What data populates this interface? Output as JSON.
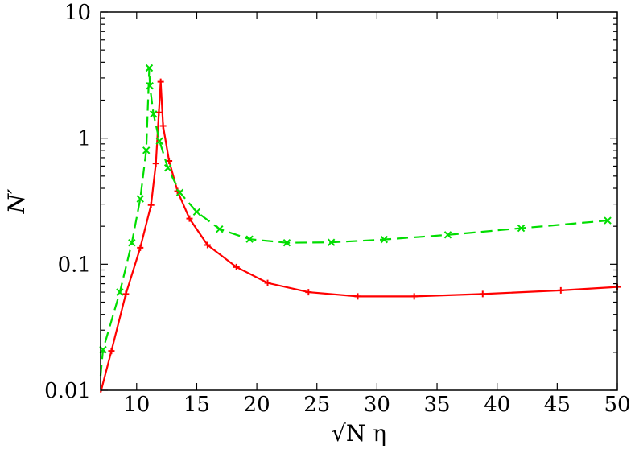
{
  "chart_data": {
    "type": "line",
    "xlabel": "√N η",
    "ylabel": "N′",
    "xlim": [
      7,
      50
    ],
    "ylim": [
      0.01,
      10
    ],
    "yscale": "log",
    "grid": false,
    "x_ticks": [
      10,
      15,
      20,
      25,
      30,
      35,
      40,
      45,
      50
    ],
    "x_tick_labels": [
      "10",
      "15",
      "20",
      "25",
      "30",
      "35",
      "40",
      "45",
      "50"
    ],
    "y_ticks": [
      0.01,
      0.1,
      1,
      10
    ],
    "y_tick_labels": [
      "0.01",
      "0.1",
      "1",
      "10"
    ],
    "series": [
      {
        "color": "#ff0000",
        "line_style": "solid",
        "marker": "+",
        "points": [
          [
            7,
            0.0096
          ],
          [
            7.9,
            0.0205
          ],
          [
            9.1,
            0.058
          ],
          [
            10.3,
            0.135
          ],
          [
            11.2,
            0.295
          ],
          [
            11.6,
            0.63
          ],
          [
            11.85,
            1.6
          ],
          [
            12.0,
            2.8
          ],
          [
            12.2,
            1.25
          ],
          [
            12.7,
            0.66
          ],
          [
            13.4,
            0.38
          ],
          [
            14.4,
            0.23
          ],
          [
            15.9,
            0.142
          ],
          [
            18.3,
            0.095
          ],
          [
            20.9,
            0.071
          ],
          [
            24.3,
            0.06
          ],
          [
            28.4,
            0.0555
          ],
          [
            33.1,
            0.0555
          ],
          [
            38.8,
            0.058
          ],
          [
            45.3,
            0.062
          ],
          [
            50,
            0.066
          ]
        ]
      },
      {
        "color": "#00dd00",
        "line_style": "dashed",
        "marker": "x",
        "points": [
          [
            7,
            0.013
          ],
          [
            7.2,
            0.021
          ],
          [
            8.6,
            0.06
          ],
          [
            9.6,
            0.148
          ],
          [
            10.3,
            0.33
          ],
          [
            10.8,
            0.8
          ],
          [
            11.05,
            3.6
          ],
          [
            11.1,
            2.6
          ],
          [
            11.4,
            1.55
          ],
          [
            11.9,
            0.95
          ],
          [
            12.6,
            0.58
          ],
          [
            13.6,
            0.37
          ],
          [
            15.0,
            0.26
          ],
          [
            16.9,
            0.19
          ],
          [
            19.4,
            0.158
          ],
          [
            22.5,
            0.148
          ],
          [
            26.2,
            0.149
          ],
          [
            30.6,
            0.157
          ],
          [
            35.9,
            0.171
          ],
          [
            42.0,
            0.193
          ],
          [
            49.2,
            0.222
          ]
        ]
      }
    ]
  }
}
